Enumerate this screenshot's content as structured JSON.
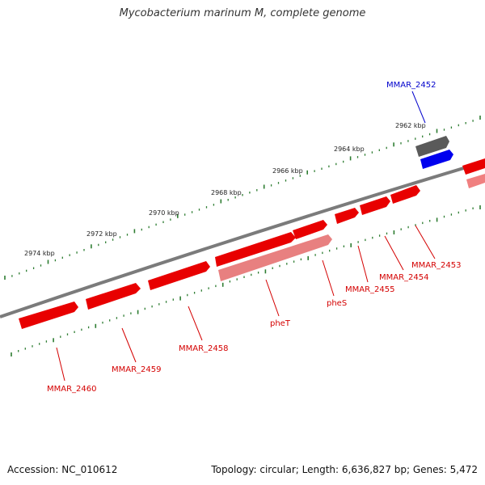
{
  "title": "Mycobacterium marinum M, complete genome",
  "footer": {
    "accession": "Accession: NC_010612",
    "summary": "Topology: circular; Length: 6,636,827 bp; Genes: 5,472"
  },
  "colors": {
    "backbone": "#7b7b7b",
    "tick": "#2e7d32",
    "gene_forward": "#e80000",
    "gene_reverse": "#e80000",
    "gene_pseudo": "#e88080",
    "label_red": "#d40000",
    "label_blue": "#0000cc",
    "gray_feature": "#5a5a5a",
    "blue_feature": "#0000ee"
  },
  "scale": {
    "unit": "kbp",
    "labels": [
      "2962 kbp",
      "2964 kbp",
      "2966 kbp",
      "2968 kbp",
      "2970 kbp",
      "2972 kbp",
      "2974 kbp"
    ]
  },
  "gene_labels": [
    {
      "text": "MMAR_2452",
      "color": "blue"
    },
    {
      "text": "MMAR_2453",
      "color": "red"
    },
    {
      "text": "MMAR_2454",
      "color": "red"
    },
    {
      "text": "MMAR_2455",
      "color": "red"
    },
    {
      "text": "pheS",
      "color": "red"
    },
    {
      "text": "pheT",
      "color": "red"
    },
    {
      "text": "MMAR_2458",
      "color": "red"
    },
    {
      "text": "MMAR_2459",
      "color": "red"
    },
    {
      "text": "MMAR_2460",
      "color": "red"
    }
  ]
}
